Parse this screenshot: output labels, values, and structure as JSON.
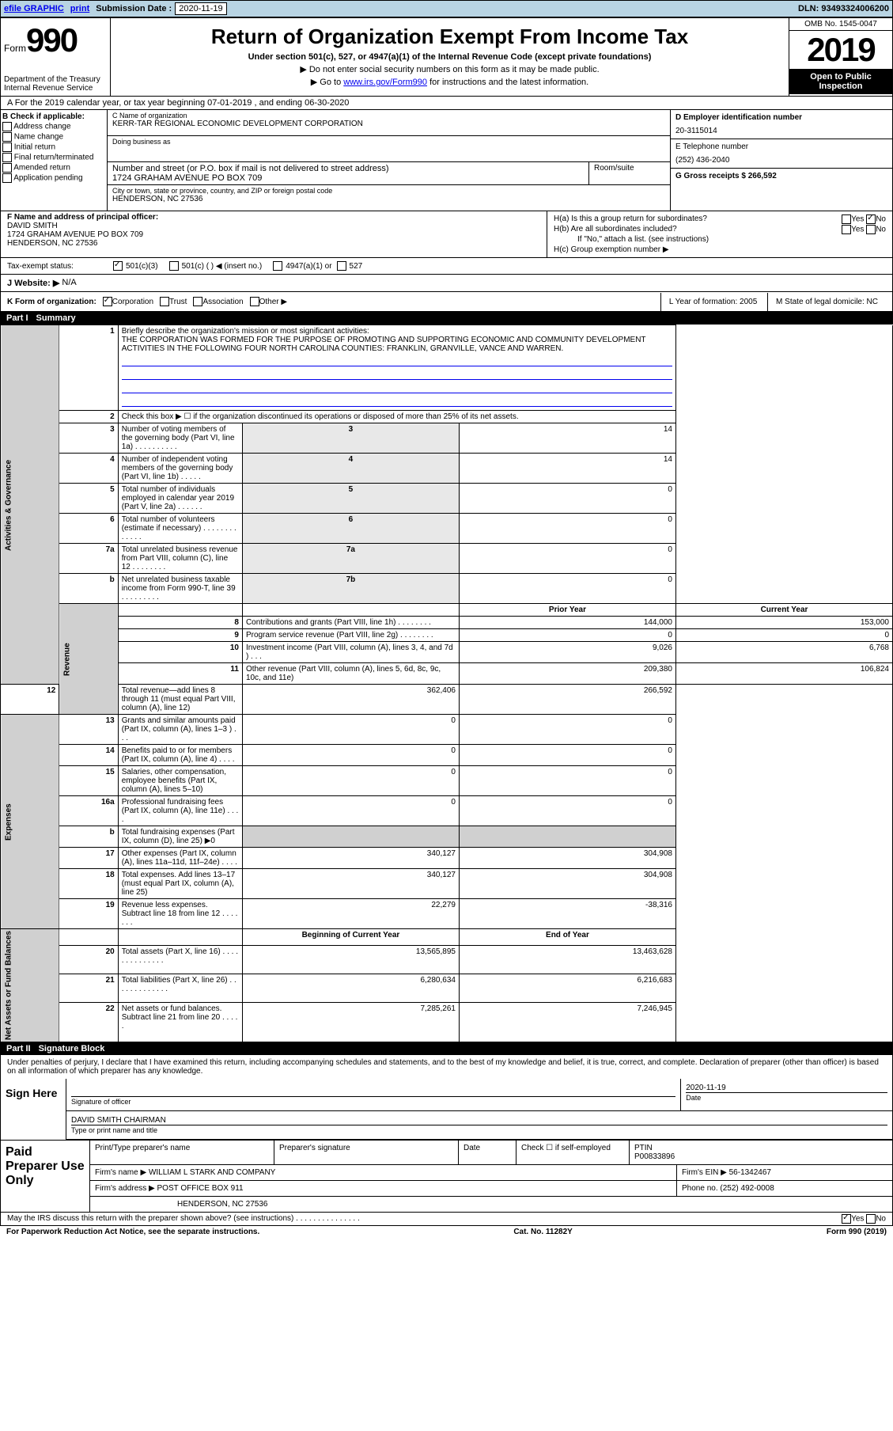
{
  "top": {
    "efile": "efile GRAPHIC",
    "print": "print",
    "sub_label": "Submission Date :",
    "sub_date": "2020-11-19",
    "dln": "DLN: 93493324006200"
  },
  "header": {
    "form_word": "Form",
    "form_num": "990",
    "dept": "Department of the Treasury\nInternal Revenue Service",
    "title": "Return of Organization Exempt From Income Tax",
    "sub1": "Under section 501(c), 527, or 4947(a)(1) of the Internal Revenue Code (except private foundations)",
    "sub2": "▶ Do not enter social security numbers on this form as it may be made public.",
    "sub3_pre": "▶ Go to ",
    "sub3_link": "www.irs.gov/Form990",
    "sub3_post": " for instructions and the latest information.",
    "omb": "OMB No. 1545-0047",
    "year": "2019",
    "open": "Open to Public Inspection"
  },
  "rowA": "A For the 2019 calendar year, or tax year beginning 07-01-2019    , and ending 06-30-2020",
  "B": {
    "caption": "B Check if applicable:",
    "items": [
      "Address change",
      "Name change",
      "Initial return",
      "Final return/terminated",
      "Amended return",
      "Application pending"
    ]
  },
  "C": {
    "name_cap": "C Name of organization",
    "name": "KERR-TAR REGIONAL ECONOMIC DEVELOPMENT CORPORATION",
    "dba_cap": "Doing business as",
    "dba": "",
    "addr_cap": "Number and street (or P.O. box if mail is not delivered to street address)",
    "addr": "1724 GRAHAM AVENUE PO BOX 709",
    "room_cap": "Room/suite",
    "city_cap": "City or town, state or province, country, and ZIP or foreign postal code",
    "city": "HENDERSON, NC  27536"
  },
  "D": {
    "ein_cap": "D Employer identification number",
    "ein": "20-3115014",
    "tel_cap": "E Telephone number",
    "tel": "(252) 436-2040",
    "gross_cap": "G Gross receipts $ 266,592"
  },
  "F": {
    "cap": "F  Name and address of principal officer:",
    "name": "DAVID SMITH",
    "addr1": "1724 GRAHAM AVENUE PO BOX 709",
    "addr2": "HENDERSON, NC  27536"
  },
  "H": {
    "a": "H(a)  Is this a group return for subordinates?",
    "b": "H(b)  Are all subordinates included?",
    "b_note": "If \"No,\" attach a list. (see instructions)",
    "c": "H(c)  Group exemption number ▶",
    "yes": "Yes",
    "no": "No"
  },
  "tax": {
    "label": "Tax-exempt status:",
    "opt1": "501(c)(3)",
    "opt2": "501(c) (  ) ◀ (insert no.)",
    "opt3": "4947(a)(1) or",
    "opt4": "527"
  },
  "J": {
    "label": "J  Website: ▶",
    "val": "N/A"
  },
  "K": {
    "label": "K Form of organization:",
    "opts": [
      "Corporation",
      "Trust",
      "Association",
      "Other ▶"
    ],
    "L": "L Year of formation: 2005",
    "M": "M State of legal domicile: NC"
  },
  "part1": {
    "label": "Part I",
    "title": "Summary"
  },
  "summary": {
    "groups": [
      {
        "label": "Activities & Governance",
        "rows": [
          {
            "n": "1",
            "text": "Briefly describe the organization's mission or most significant activities:",
            "full": true,
            "desc": "THE CORPORATION WAS FORMED FOR THE PURPOSE OF PROMOTING AND SUPPORTING ECONOMIC AND COMMUNITY DEVELOPMENT ACTIVITIES IN THE FOLLOWING FOUR NORTH CAROLINA COUNTIES: FRANKLIN, GRANVILLE, VANCE AND WARREN."
          },
          {
            "n": "2",
            "text": "Check this box ▶ ☐  if the organization discontinued its operations or disposed of more than 25% of its net assets.",
            "full": true
          },
          {
            "n": "3",
            "text": "Number of voting members of the governing body (Part VI, line 1a)  .   .   .   .   .   .   .   .   .   .",
            "box": "3",
            "val": "14"
          },
          {
            "n": "4",
            "text": "Number of independent voting members of the governing body (Part VI, line 1b)  .   .   .   .   .",
            "box": "4",
            "val": "14"
          },
          {
            "n": "5",
            "text": "Total number of individuals employed in calendar year 2019 (Part V, line 2a)  .   .   .   .   .   .",
            "box": "5",
            "val": "0"
          },
          {
            "n": "6",
            "text": "Total number of volunteers (estimate if necessary)   .   .   .   .   .   .   .   .   .   .   .   .   .",
            "box": "6",
            "val": "0"
          },
          {
            "n": "7a",
            "text": "Total unrelated business revenue from Part VIII, column (C), line 12  .   .   .   .   .   .   .   .",
            "box": "7a",
            "val": "0"
          },
          {
            "n": "b",
            "text": "Net unrelated business taxable income from Form 990-T, line 39   .   .   .   .   .   .   .   .   .",
            "box": "7b",
            "val": "0"
          }
        ]
      },
      {
        "label": "Revenue",
        "header": true,
        "hprior": "Prior Year",
        "hcur": "Current Year",
        "rows": [
          {
            "n": "8",
            "text": "Contributions and grants (Part VIII, line 1h)   .   .   .   .   .   .   .   .",
            "prior": "144,000",
            "cur": "153,000"
          },
          {
            "n": "9",
            "text": "Program service revenue (Part VIII, line 2g)   .   .   .   .   .   .   .   .",
            "prior": "0",
            "cur": "0"
          },
          {
            "n": "10",
            "text": "Investment income (Part VIII, column (A), lines 3, 4, and 7d )   .   .   .",
            "prior": "9,026",
            "cur": "6,768"
          },
          {
            "n": "11",
            "text": "Other revenue (Part VIII, column (A), lines 5, 6d, 8c, 9c, 10c, and 11e)",
            "prior": "209,380",
            "cur": "106,824"
          },
          {
            "n": "12",
            "text": "Total revenue—add lines 8 through 11 (must equal Part VIII, column (A), line 12)",
            "prior": "362,406",
            "cur": "266,592"
          }
        ]
      },
      {
        "label": "Expenses",
        "rows": [
          {
            "n": "13",
            "text": "Grants and similar amounts paid (Part IX, column (A), lines 1–3 )  .   .   .",
            "prior": "0",
            "cur": "0"
          },
          {
            "n": "14",
            "text": "Benefits paid to or for members (Part IX, column (A), line 4)  .   .   .   .",
            "prior": "0",
            "cur": "0"
          },
          {
            "n": "15",
            "text": "Salaries, other compensation, employee benefits (Part IX, column (A), lines 5–10)",
            "prior": "0",
            "cur": "0"
          },
          {
            "n": "16a",
            "text": "Professional fundraising fees (Part IX, column (A), line 11e)  .   .   .   .",
            "prior": "0",
            "cur": "0"
          },
          {
            "n": "b",
            "text": "Total fundraising expenses (Part IX, column (D), line 25) ▶0",
            "shaded": true
          },
          {
            "n": "17",
            "text": "Other expenses (Part IX, column (A), lines 11a–11d, 11f–24e)  .   .   .   .",
            "prior": "340,127",
            "cur": "304,908"
          },
          {
            "n": "18",
            "text": "Total expenses. Add lines 13–17 (must equal Part IX, column (A), line 25)",
            "prior": "340,127",
            "cur": "304,908"
          },
          {
            "n": "19",
            "text": "Revenue less expenses. Subtract line 18 from line 12 .   .   .   .   .   .   .",
            "prior": "22,279",
            "cur": "-38,316"
          }
        ]
      },
      {
        "label": "Net Assets or Fund Balances",
        "header": true,
        "hprior": "Beginning of Current Year",
        "hcur": "End of Year",
        "rows": [
          {
            "n": "20",
            "text": "Total assets (Part X, line 16)  .   .   .   .   .   .   .   .   .   .   .   .   .   .",
            "prior": "13,565,895",
            "cur": "13,463,628"
          },
          {
            "n": "21",
            "text": "Total liabilities (Part X, line 26)  .   .   .   .   .   .   .   .   .   .   .   .   .",
            "prior": "6,280,634",
            "cur": "6,216,683"
          },
          {
            "n": "22",
            "text": "Net assets or fund balances. Subtract line 21 from line 20  .   .   .   .   .",
            "prior": "7,285,261",
            "cur": "7,246,945"
          }
        ]
      }
    ]
  },
  "part2": {
    "label": "Part II",
    "title": "Signature Block"
  },
  "sig": {
    "decl": "Under penalties of perjury, I declare that I have examined this return, including accompanying schedules and statements, and to the best of my knowledge and belief, it is true, correct, and complete. Declaration of preparer (other than officer) is based on all information of which preparer has any knowledge.",
    "sign_here": "Sign Here",
    "sig_off": "Signature of officer",
    "date_lbl": "Date",
    "date_val": "2020-11-19",
    "name": "DAVID SMITH  CHAIRMAN",
    "name_cap": "Type or print name and title"
  },
  "paid": {
    "label": "Paid Preparer Use Only",
    "h1": "Print/Type preparer's name",
    "h2": "Preparer's signature",
    "h3": "Date",
    "h4": "Check ☐  if self-employed",
    "h5": "PTIN",
    "ptin": "P00833896",
    "firm_lbl": "Firm's name     ▶",
    "firm": "WILLIAM L STARK AND COMPANY",
    "ein_lbl": "Firm's EIN ▶",
    "ein": "56-1342467",
    "addr_lbl": "Firm's address ▶",
    "addr1": "POST OFFICE BOX 911",
    "addr2": "HENDERSON, NC  27536",
    "phone_lbl": "Phone no.",
    "phone": "(252) 492-0008"
  },
  "footer": {
    "discuss": "May the IRS discuss this return with the preparer shown above? (see instructions)   .   .   .   .   .   .   .   .   .   .   .   .   .   .   .",
    "yes": "Yes",
    "no": "No",
    "notice": "For Paperwork Reduction Act Notice, see the separate instructions.",
    "cat": "Cat. No. 11282Y",
    "form": "Form 990 (2019)"
  }
}
